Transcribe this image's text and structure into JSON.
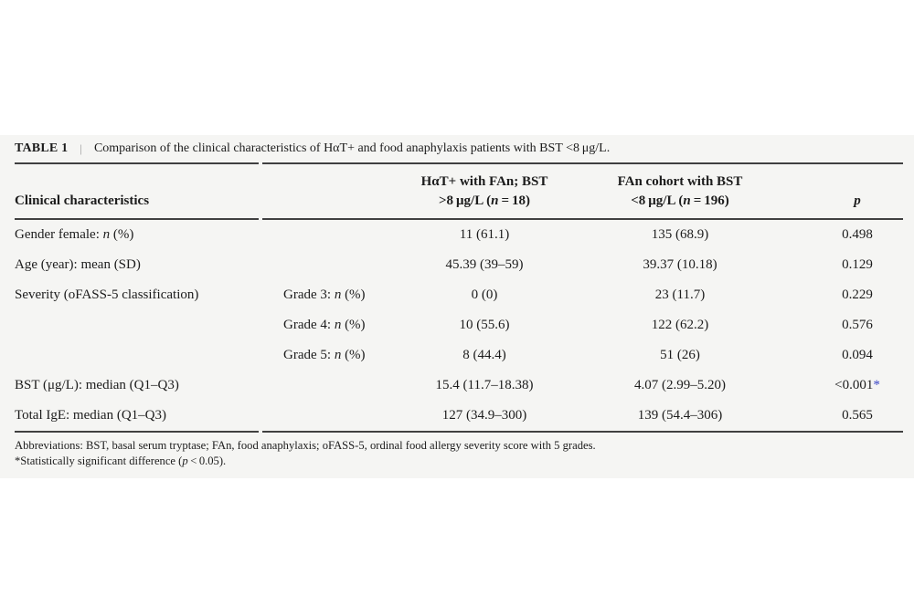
{
  "colors": {
    "band_background": "#f5f5f3",
    "text": "#1c1c1c",
    "rule": "#404040",
    "caption_separator": "#999999",
    "significance_marker": "#3c47c6"
  },
  "table": {
    "label": "TABLE 1",
    "separator": "|",
    "caption": "Comparison of the clinical characteristics of HαT+ and food anaphylaxis patients with BST <8 μg/L.",
    "header": {
      "characteristics": "Clinical characteristics",
      "subcategory": "",
      "group1_line1": "HαT+ with FAn; BST",
      "group1_line2": ">8 μg/L (n = 18)",
      "group2_line1": "FAn cohort with BST",
      "group2_line2": "<8 μg/L (n = 196)",
      "p": "p"
    },
    "rows": [
      {
        "characteristic": "Gender female: n (%)",
        "subcategory": "",
        "group1": "11 (61.1)",
        "group2": "135 (68.9)",
        "p": "0.498",
        "marker": ""
      },
      {
        "characteristic": "Age (year): mean (SD)",
        "subcategory": "",
        "group1": "45.39 (39–59)",
        "group2": "39.37 (10.18)",
        "p": "0.129",
        "marker": ""
      },
      {
        "characteristic": "Severity (oFASS-5 classification)",
        "subcategory": "Grade 3: n (%)",
        "group1": "0 (0)",
        "group2": "23 (11.7)",
        "p": "0.229",
        "marker": ""
      },
      {
        "characteristic": "",
        "subcategory": "Grade 4: n (%)",
        "group1": "10 (55.6)",
        "group2": "122 (62.2)",
        "p": "0.576",
        "marker": ""
      },
      {
        "characteristic": "",
        "subcategory": "Grade 5: n (%)",
        "group1": "8 (44.4)",
        "group2": "51 (26)",
        "p": "0.094",
        "marker": ""
      },
      {
        "characteristic": "BST (μg/L): median (Q1–Q3)",
        "subcategory": "",
        "group1": "15.4 (11.7–18.38)",
        "group2": "4.07 (2.99–5.20)",
        "p": "<0.001",
        "marker": "*"
      },
      {
        "characteristic": "Total IgE: median (Q1–Q3)",
        "subcategory": "",
        "group1": "127 (34.9–300)",
        "group2": "139 (54.4–306)",
        "p": "0.565",
        "marker": ""
      }
    ],
    "footnotes": [
      "Abbreviations: BST, basal serum tryptase; FAn, food anaphylaxis; oFASS-5, ordinal food allergy severity score with 5 grades.",
      "*Statistically significant difference (p < 0.05)."
    ]
  }
}
